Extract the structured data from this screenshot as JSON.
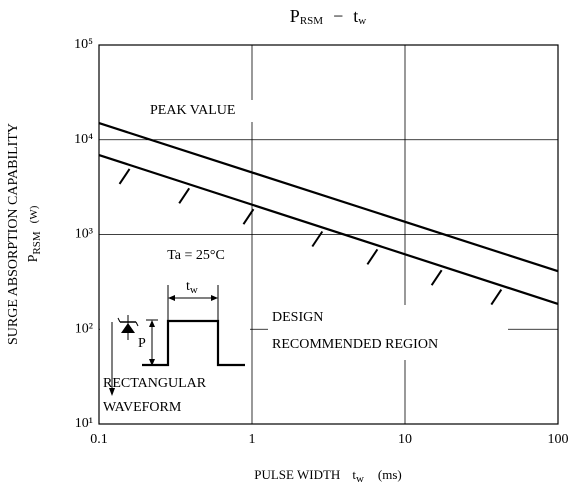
{
  "chart_data": {
    "type": "line",
    "title": {
      "main": "P",
      "main_sub": "RSM",
      "sep": "−",
      "var": "t",
      "var_sub": "w"
    },
    "y_label": {
      "line1": "SURGE ABSORPTION CAPABILITY",
      "main": "P",
      "main_sub": "RSM",
      "unit": "(W)"
    },
    "x_label": {
      "main": "PULSE WIDTH",
      "var": "t",
      "var_sub": "w",
      "unit": "(ms)"
    },
    "log_x": true,
    "log_y": true,
    "grid": true,
    "xlim": [
      0.1,
      100
    ],
    "xticks": [
      0.1,
      1,
      10,
      100
    ],
    "ylim": [
      10,
      100000
    ],
    "yticks": [
      {
        "value": 10,
        "label": "10¹"
      },
      {
        "value": 100,
        "label": "10²"
      },
      {
        "value": 1000,
        "label": "10³"
      },
      {
        "value": 10000,
        "label": "10⁴"
      },
      {
        "value": 100000,
        "label": "10⁵"
      }
    ],
    "series": [
      {
        "name": "PEAK VALUE",
        "color": "#000000",
        "x": [
          0.1,
          100
        ],
        "values": [
          15000,
          410
        ]
      },
      {
        "color": "#000000",
        "x": [
          0.1,
          100
        ],
        "values": [
          6900,
          185
        ]
      }
    ],
    "annotations": {
      "ta": "Ta = 25°C",
      "tw": "t",
      "tw_sub": "w",
      "p": "P",
      "wave1": "RECTANGULAR",
      "wave2": "WAVEFORM",
      "design1": "DESIGN",
      "design2": "RECOMMENDED REGION"
    }
  }
}
